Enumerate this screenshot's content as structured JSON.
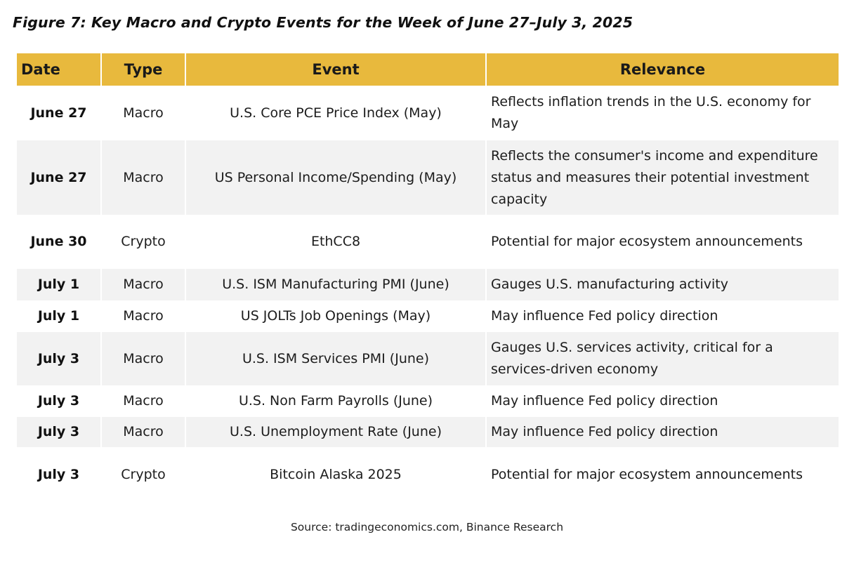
{
  "figure": {
    "title": "Figure 7: Key Macro and Crypto Events for the Week of June 27–July 3, 2025",
    "source": "Source: tradingeconomics.com, Binance Research"
  },
  "table": {
    "header_color": "#e8b93d",
    "headers": {
      "date": "Date",
      "type": "Type",
      "event": "Event",
      "relevance": "Relevance"
    },
    "rows": [
      {
        "date": "June 27",
        "type": "Macro",
        "event": "U.S. Core PCE Price Index (May)",
        "relevance": "Reflects inflation trends in the U.S. economy for May"
      },
      {
        "date": "June 27",
        "type": "Macro",
        "event": "US Personal Income/Spending (May)",
        "relevance": "Reflects the consumer's income and expenditure status and measures their potential investment capacity"
      },
      {
        "date": "June 30",
        "type": "Crypto",
        "event": "EthCC8",
        "relevance": "Potential for major ecosystem announcements"
      },
      {
        "date": "July 1",
        "type": "Macro",
        "event": "U.S. ISM Manufacturing PMI (June)",
        "relevance": "Gauges U.S. manufacturing activity"
      },
      {
        "date": "July 1",
        "type": "Macro",
        "event": "US JOLTs Job Openings (May)",
        "relevance": "May influence Fed policy direction"
      },
      {
        "date": "July 3",
        "type": "Macro",
        "event": "U.S. ISM Services PMI (June)",
        "relevance": "Gauges U.S. services activity, critical for a services-driven economy"
      },
      {
        "date": "July 3",
        "type": "Macro",
        "event": "U.S. Non Farm Payrolls (June)",
        "relevance": "May influence Fed policy direction"
      },
      {
        "date": "July 3",
        "type": "Macro",
        "event": "U.S. Unemployment Rate (June)",
        "relevance": "May influence Fed policy direction"
      },
      {
        "date": "July 3",
        "type": "Crypto",
        "event": "Bitcoin Alaska 2025",
        "relevance": "Potential for major ecosystem announcements"
      }
    ]
  }
}
